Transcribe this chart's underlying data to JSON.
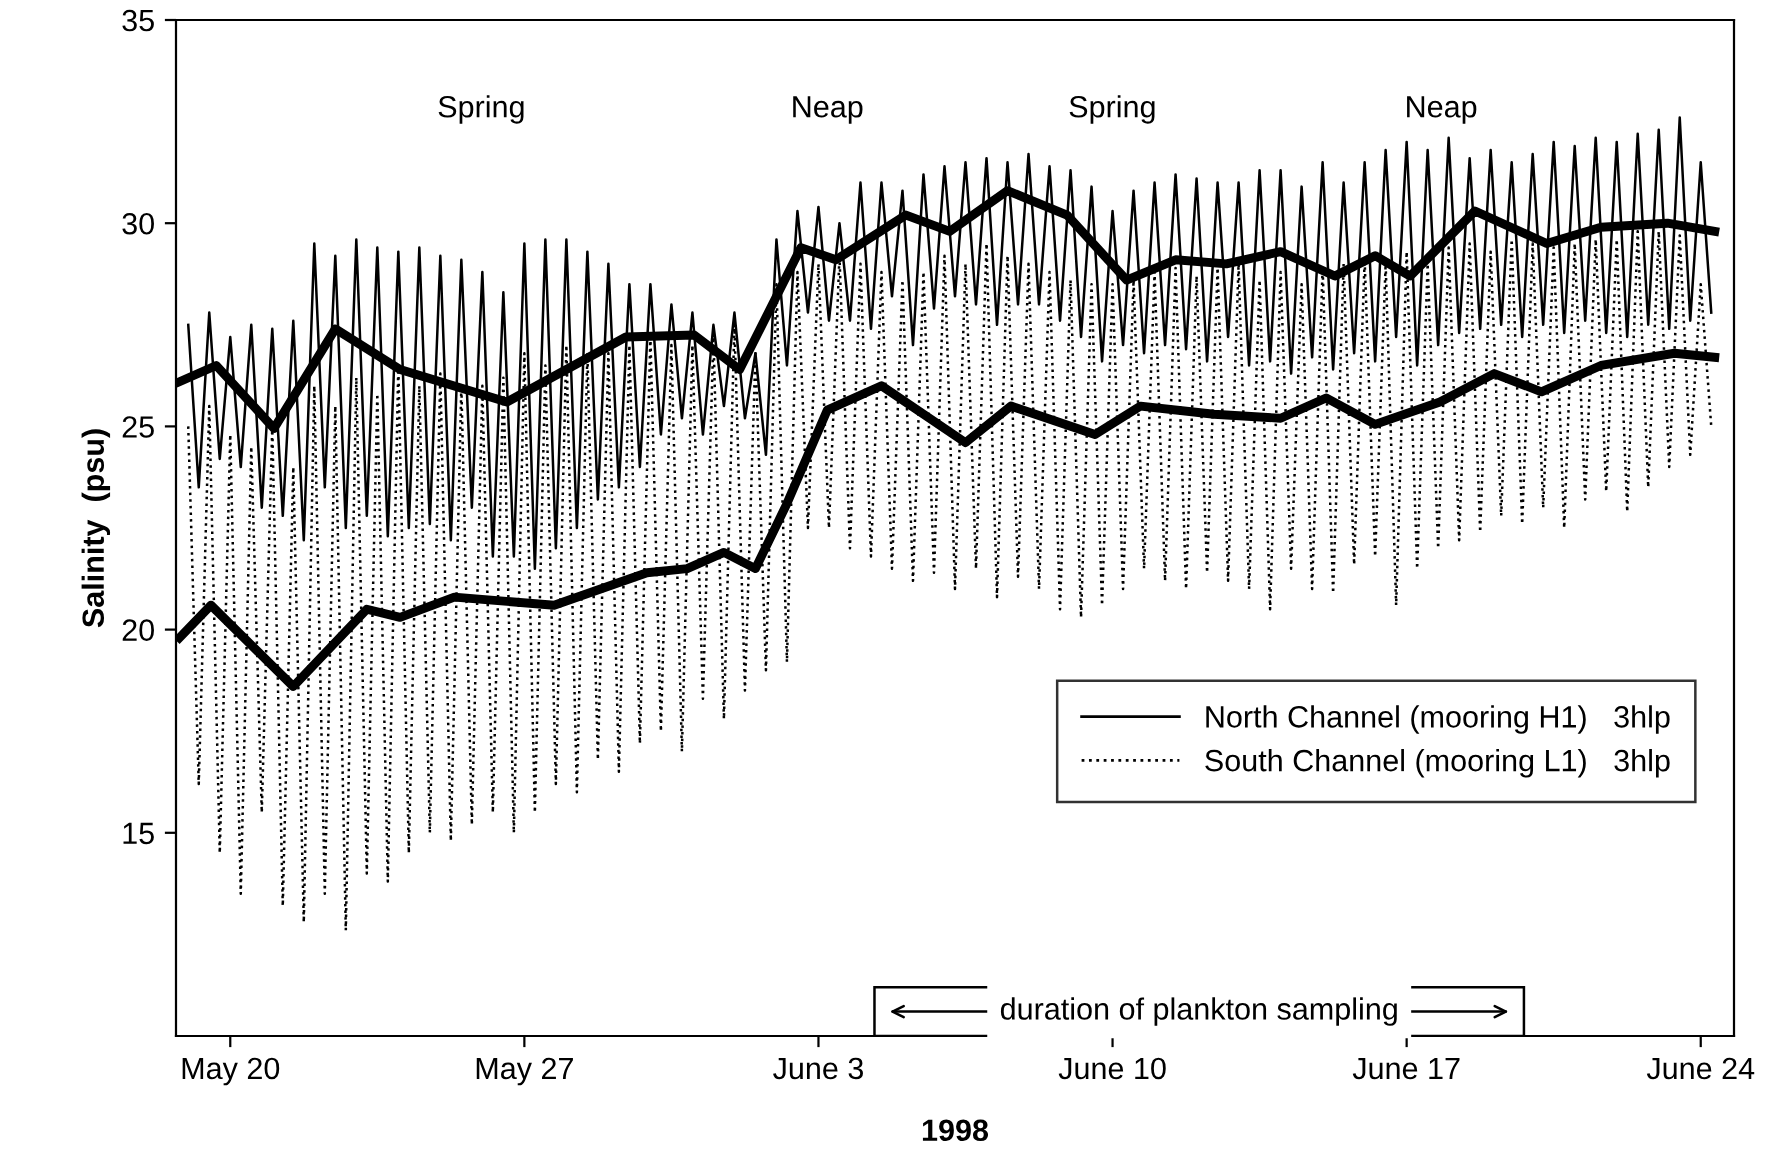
{
  "chart_data": {
    "type": "line",
    "xlabel": "1998",
    "ylabel": "Salinity  (psu)",
    "xlim": [
      "1998-05-18T17:00",
      "1998-06-24T19:00"
    ],
    "xticks": [
      {
        "value": "1998-05-20",
        "label": "May 20"
      },
      {
        "value": "1998-05-27",
        "label": "May 27"
      },
      {
        "value": "1998-06-03",
        "label": "June 3"
      },
      {
        "value": "1998-06-10",
        "label": "June 10"
      },
      {
        "value": "1998-06-17",
        "label": "June 17"
      },
      {
        "value": "1998-06-24",
        "label": "June 24"
      }
    ],
    "ylim": [
      10,
      35
    ],
    "yticks": [
      15,
      20,
      25,
      30,
      35
    ],
    "grid": false,
    "legend": "right",
    "marker": "none",
    "x": [
      "1998-05-19T00:00",
      "1998-05-19T06:00",
      "1998-05-19T12:00",
      "1998-05-19T18:00",
      "1998-05-20T00:00",
      "1998-05-20T06:00",
      "1998-05-20T12:00",
      "1998-05-20T18:00",
      "1998-05-21T00:00",
      "1998-05-21T06:00",
      "1998-05-21T12:00",
      "1998-05-21T18:00",
      "1998-05-22T00:00",
      "1998-05-22T06:00",
      "1998-05-22T12:00",
      "1998-05-22T18:00",
      "1998-05-23T00:00",
      "1998-05-23T06:00",
      "1998-05-23T12:00",
      "1998-05-23T18:00",
      "1998-05-24T00:00",
      "1998-05-24T06:00",
      "1998-05-24T12:00",
      "1998-05-24T18:00",
      "1998-05-25T00:00",
      "1998-05-25T06:00",
      "1998-05-25T12:00",
      "1998-05-25T18:00",
      "1998-05-26T00:00",
      "1998-05-26T06:00",
      "1998-05-26T12:00",
      "1998-05-26T18:00",
      "1998-05-27T00:00",
      "1998-05-27T06:00",
      "1998-05-27T12:00",
      "1998-05-27T18:00",
      "1998-05-28T00:00",
      "1998-05-28T06:00",
      "1998-05-28T12:00",
      "1998-05-28T18:00",
      "1998-05-29T00:00",
      "1998-05-29T06:00",
      "1998-05-29T12:00",
      "1998-05-29T18:00",
      "1998-05-30T00:00",
      "1998-05-30T06:00",
      "1998-05-30T12:00",
      "1998-05-30T18:00",
      "1998-05-31T00:00",
      "1998-05-31T06:00",
      "1998-05-31T12:00",
      "1998-05-31T18:00",
      "1998-06-01T00:00",
      "1998-06-01T06:00",
      "1998-06-01T12:00",
      "1998-06-01T18:00",
      "1998-06-02T00:00",
      "1998-06-02T06:00",
      "1998-06-02T12:00",
      "1998-06-02T18:00",
      "1998-06-03T00:00",
      "1998-06-03T06:00",
      "1998-06-03T12:00",
      "1998-06-03T18:00",
      "1998-06-04T00:00",
      "1998-06-04T06:00",
      "1998-06-04T12:00",
      "1998-06-04T18:00",
      "1998-06-05T00:00",
      "1998-06-05T06:00",
      "1998-06-05T12:00",
      "1998-06-05T18:00",
      "1998-06-06T00:00",
      "1998-06-06T06:00",
      "1998-06-06T12:00",
      "1998-06-06T18:00",
      "1998-06-07T00:00",
      "1998-06-07T06:00",
      "1998-06-07T12:00",
      "1998-06-07T18:00",
      "1998-06-08T00:00",
      "1998-06-08T06:00",
      "1998-06-08T12:00",
      "1998-06-08T18:00",
      "1998-06-09T00:00",
      "1998-06-09T06:00",
      "1998-06-09T12:00",
      "1998-06-09T18:00",
      "1998-06-10T00:00",
      "1998-06-10T06:00",
      "1998-06-10T12:00",
      "1998-06-10T18:00",
      "1998-06-11T00:00",
      "1998-06-11T06:00",
      "1998-06-11T12:00",
      "1998-06-11T18:00",
      "1998-06-12T00:00",
      "1998-06-12T06:00",
      "1998-06-12T12:00",
      "1998-06-12T18:00",
      "1998-06-13T00:00",
      "1998-06-13T06:00",
      "1998-06-13T12:00",
      "1998-06-13T18:00",
      "1998-06-14T00:00",
      "1998-06-14T06:00",
      "1998-06-14T12:00",
      "1998-06-14T18:00",
      "1998-06-15T00:00",
      "1998-06-15T06:00",
      "1998-06-15T12:00",
      "1998-06-15T18:00",
      "1998-06-16T00:00",
      "1998-06-16T06:00",
      "1998-06-16T12:00",
      "1998-06-16T18:00",
      "1998-06-17T00:00",
      "1998-06-17T06:00",
      "1998-06-17T12:00",
      "1998-06-17T18:00",
      "1998-06-18T00:00",
      "1998-06-18T06:00",
      "1998-06-18T12:00",
      "1998-06-18T18:00",
      "1998-06-19T00:00",
      "1998-06-19T06:00",
      "1998-06-19T12:00",
      "1998-06-19T18:00",
      "1998-06-20T00:00",
      "1998-06-20T06:00",
      "1998-06-20T12:00",
      "1998-06-20T18:00",
      "1998-06-21T00:00",
      "1998-06-21T06:00",
      "1998-06-21T12:00",
      "1998-06-21T18:00",
      "1998-06-22T00:00",
      "1998-06-22T06:00",
      "1998-06-22T12:00",
      "1998-06-22T18:00",
      "1998-06-23T00:00",
      "1998-06-23T06:00",
      "1998-06-23T12:00",
      "1998-06-23T18:00",
      "1998-06-24T00:00",
      "1998-06-24T06:00"
    ],
    "series": [
      {
        "name": "North Channel (mooring H1)   3hlp",
        "color": "#000000",
        "line_style": "solid",
        "values": [
          27.5,
          23.5,
          27.8,
          24.2,
          27.2,
          24.0,
          27.5,
          23.0,
          27.4,
          22.8,
          27.6,
          22.2,
          29.5,
          23.5,
          29.2,
          22.5,
          29.6,
          22.8,
          29.4,
          22.3,
          29.3,
          22.5,
          29.4,
          22.6,
          29.2,
          22.2,
          29.1,
          23.0,
          28.8,
          21.8,
          28.3,
          21.8,
          29.5,
          21.5,
          29.6,
          22.0,
          29.6,
          22.5,
          29.3,
          23.2,
          29.0,
          23.5,
          28.5,
          24.0,
          28.5,
          24.8,
          28.0,
          25.2,
          27.8,
          24.8,
          27.5,
          25.5,
          27.8,
          25.2,
          26.8,
          24.3,
          29.6,
          26.5,
          30.3,
          27.8,
          30.4,
          27.6,
          30.0,
          27.6,
          31.0,
          27.4,
          31.0,
          28.2,
          30.8,
          27.0,
          31.2,
          27.9,
          31.4,
          28.2,
          31.5,
          28.0,
          31.6,
          27.5,
          31.5,
          28.0,
          31.7,
          28.0,
          31.4,
          27.6,
          31.3,
          27.2,
          30.9,
          26.6,
          30.3,
          27.0,
          30.8,
          26.8,
          31.0,
          27.0,
          31.2,
          26.9,
          31.1,
          26.6,
          31.0,
          27.2,
          31.0,
          26.5,
          31.3,
          26.6,
          31.3,
          26.3,
          30.9,
          26.7,
          31.5,
          26.4,
          31.0,
          26.8,
          31.5,
          26.6,
          31.8,
          27.2,
          32.0,
          26.5,
          31.8,
          27.0,
          32.1,
          27.3,
          31.6,
          27.4,
          31.8,
          27.5,
          31.5,
          27.2,
          31.7,
          27.5,
          32.0,
          27.3,
          31.9,
          27.6,
          32.1,
          27.3,
          32.0,
          27.2,
          32.2,
          27.5,
          32.3,
          27.4,
          32.6,
          27.6,
          31.5,
          27.8
        ]
      },
      {
        "name": "South Channel (mooring L1)   3hlp",
        "color": "#000000",
        "line_style": "dotted",
        "values": [
          25.0,
          16.2,
          25.5,
          14.5,
          24.8,
          13.5,
          24.5,
          15.5,
          25.0,
          13.2,
          24.0,
          12.8,
          26.0,
          13.5,
          25.5,
          12.6,
          26.2,
          14.0,
          25.8,
          13.8,
          26.5,
          14.5,
          26.0,
          15.0,
          26.3,
          14.8,
          26.0,
          15.2,
          26.0,
          15.5,
          26.2,
          15.0,
          26.8,
          15.5,
          26.5,
          16.2,
          27.0,
          16.0,
          26.8,
          16.8,
          26.8,
          16.5,
          27.0,
          17.2,
          27.2,
          17.5,
          27.0,
          17.0,
          27.0,
          18.3,
          27.2,
          17.8,
          27.5,
          18.5,
          26.8,
          19.0,
          28.5,
          19.2,
          28.8,
          22.5,
          29.0,
          22.5,
          29.2,
          22.0,
          29.0,
          21.8,
          28.8,
          21.5,
          28.6,
          21.2,
          28.8,
          21.4,
          29.2,
          21.0,
          29.0,
          21.5,
          29.5,
          20.8,
          29.2,
          21.3,
          29.0,
          21.0,
          28.8,
          20.5,
          28.6,
          20.3,
          28.5,
          20.6,
          28.5,
          21.0,
          28.6,
          21.5,
          28.8,
          21.2,
          28.9,
          21.0,
          28.7,
          21.4,
          28.9,
          21.2,
          29.0,
          21.0,
          28.6,
          20.5,
          28.8,
          21.5,
          28.5,
          21.0,
          28.9,
          20.9,
          29.0,
          21.6,
          29.1,
          21.8,
          29.0,
          20.6,
          29.3,
          21.5,
          29.0,
          22.0,
          29.4,
          22.2,
          29.5,
          22.4,
          29.3,
          22.8,
          29.6,
          22.6,
          29.5,
          23.0,
          29.4,
          22.5,
          29.5,
          23.2,
          29.6,
          23.4,
          29.6,
          22.9,
          29.8,
          23.5,
          29.8,
          24.0,
          29.7,
          24.3,
          28.5,
          25.0
        ]
      },
      {
        "color": "#000000",
        "line_style": "solid",
        "x": [
          "1998-05-18T19:00",
          "1998-05-19T16:00",
          "1998-05-21T01:00",
          "1998-05-22T12:00",
          "1998-05-24T01:00",
          "1998-05-26T14:00",
          "1998-05-29T10:00",
          "1998-05-31T01:00",
          "1998-06-01T03:00",
          "1998-06-02T14:00",
          "1998-06-03T10:00",
          "1998-06-05T02:00",
          "1998-06-06T03:00",
          "1998-06-07T12:00",
          "1998-06-08T22:00",
          "1998-06-10T08:00",
          "1998-06-11T12:00",
          "1998-06-12T17:00",
          "1998-06-14T00:00",
          "1998-06-15T07:00",
          "1998-06-16T06:00",
          "1998-06-17T02:00",
          "1998-06-18T15:00",
          "1998-06-20T08:00",
          "1998-06-21T15:00",
          "1998-06-23T05:00",
          "1998-06-24T08:00"
        ],
        "values": [
          26.1,
          26.5,
          24.95,
          27.4,
          26.4,
          25.6,
          27.2,
          27.25,
          26.4,
          29.4,
          29.1,
          30.2,
          29.8,
          30.8,
          30.2,
          28.6,
          29.1,
          29.0,
          29.3,
          28.7,
          29.2,
          28.7,
          30.3,
          29.5,
          29.9,
          30.0,
          29.8
        ]
      },
      {
        "color": "#000000",
        "line_style": "solid",
        "x": [
          "1998-05-18T19:00",
          "1998-05-19T13:00",
          "1998-05-21T12:00",
          "1998-05-23T06:00",
          "1998-05-24T01:00",
          "1998-05-25T08:00",
          "1998-05-27T17:00",
          "1998-05-29T22:00",
          "1998-05-30T21:00",
          "1998-05-31T18:00",
          "1998-06-01T12:00",
          "1998-06-02T06:00",
          "1998-06-03T05:00",
          "1998-06-04T12:00",
          "1998-06-06T12:00",
          "1998-06-07T14:00",
          "1998-06-09T14:00",
          "1998-06-10T16:00",
          "1998-06-12T10:00",
          "1998-06-14T00:00",
          "1998-06-15T02:00",
          "1998-06-16T06:00",
          "1998-06-17T19:00",
          "1998-06-19T02:00",
          "1998-06-20T05:00",
          "1998-06-21T15:00",
          "1998-06-23T09:00",
          "1998-06-24T08:00"
        ],
        "values": [
          19.8,
          20.6,
          18.6,
          20.5,
          20.3,
          20.8,
          20.6,
          21.4,
          21.5,
          21.9,
          21.5,
          23.1,
          25.4,
          26.0,
          24.6,
          25.5,
          24.8,
          25.5,
          25.3,
          25.2,
          25.7,
          25.05,
          25.6,
          26.3,
          25.85,
          26.5,
          26.8,
          26.7
        ]
      }
    ],
    "annotations": [
      "Spring",
      "Neap",
      "Spring",
      "Neap"
    ],
    "bands": [
      {
        "axis": "x",
        "from": "1998-06-04T08:00",
        "to": "1998-06-19T19:00",
        "label": "duration of plankton sampling"
      }
    ]
  }
}
